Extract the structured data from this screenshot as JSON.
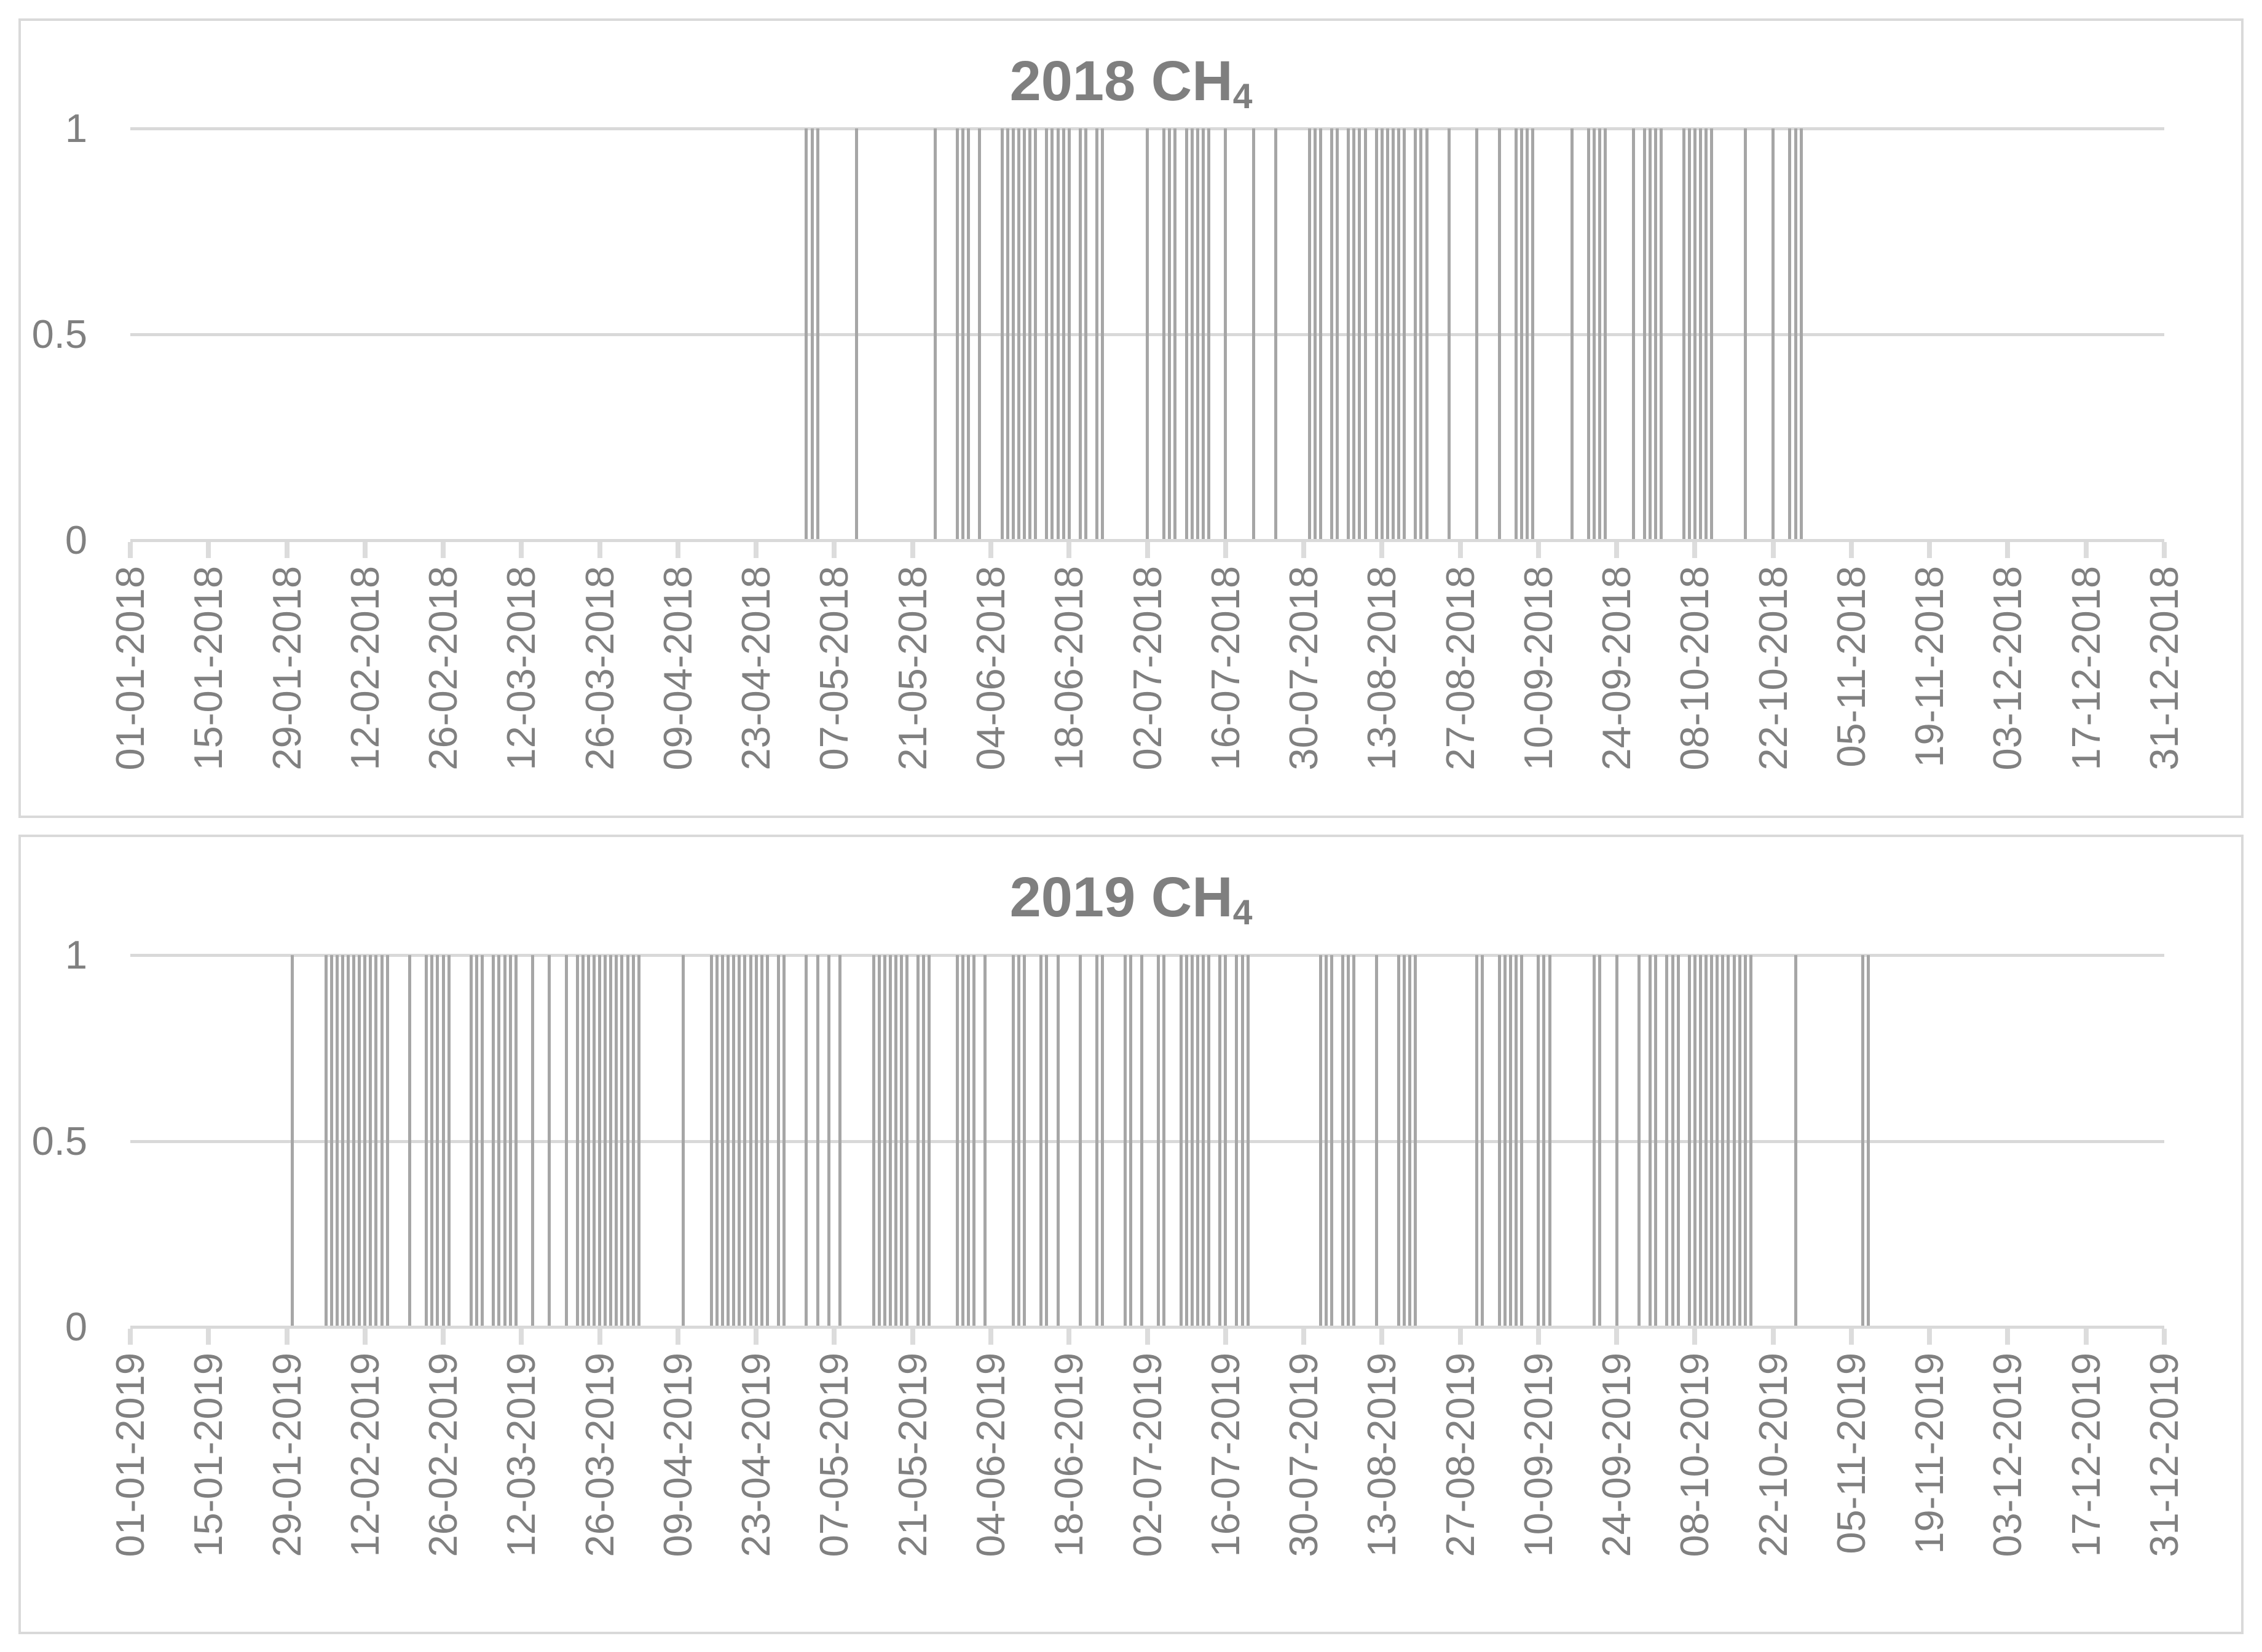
{
  "chart_data": [
    {
      "type": "bar",
      "title": "2018 CH4",
      "title_prefix": "2018 CH",
      "title_subscript": "4",
      "legend": false,
      "y_axis": {
        "ticks": [
          "1",
          "0.5",
          "0"
        ],
        "range": [
          0,
          1
        ],
        "gridlines": true
      },
      "x_axis": {
        "start": "01-01-2018",
        "end": "31-12-2018",
        "tick_interval_days": 14,
        "tick_labels": [
          "01-01-2018",
          "15-01-2018",
          "29-01-2018",
          "12-02-2018",
          "26-02-2018",
          "12-03-2018",
          "26-03-2018",
          "09-04-2018",
          "23-04-2018",
          "07-05-2018",
          "21-05-2018",
          "04-06-2018",
          "18-06-2018",
          "02-07-2018",
          "16-07-2018",
          "30-07-2018",
          "13-08-2018",
          "27-08-2018",
          "10-09-2018",
          "24-09-2018",
          "08-10-2018",
          "22-10-2018",
          "05-11-2018",
          "19-11-2018",
          "03-12-2018",
          "17-12-2018",
          "31-12-2018"
        ]
      },
      "bar_value": 1,
      "on_day_indices": [
        121,
        122,
        123,
        130,
        144,
        148,
        149,
        150,
        152,
        156,
        157,
        158,
        159,
        160,
        161,
        162,
        164,
        165,
        166,
        167,
        168,
        170,
        171,
        173,
        174,
        182,
        185,
        186,
        187,
        189,
        190,
        191,
        192,
        193,
        196,
        201,
        205,
        211,
        212,
        213,
        215,
        216,
        218,
        219,
        220,
        221,
        223,
        224,
        225,
        226,
        227,
        228,
        230,
        231,
        232,
        236,
        241,
        245,
        248,
        249,
        250,
        251,
        258,
        261,
        262,
        263,
        264,
        269,
        271,
        272,
        273,
        274,
        278,
        279,
        280,
        281,
        282,
        283,
        289,
        294,
        297,
        298,
        299
      ]
    },
    {
      "type": "bar",
      "title": "2019 CH4",
      "title_prefix": "2019 CH",
      "title_subscript": "4",
      "legend": false,
      "y_axis": {
        "ticks": [
          "1",
          "0.5",
          "0"
        ],
        "range": [
          0,
          1
        ],
        "gridlines": true
      },
      "x_axis": {
        "start": "01-01-2019",
        "end": "31-12-2019",
        "tick_interval_days": 14,
        "tick_labels": [
          "01-01-2019",
          "15-01-2019",
          "29-01-2019",
          "12-02-2019",
          "26-02-2019",
          "12-03-2019",
          "26-03-2019",
          "09-04-2019",
          "23-04-2019",
          "07-05-2019",
          "21-05-2019",
          "04-06-2019",
          "18-06-2019",
          "02-07-2019",
          "16-07-2019",
          "30-07-2019",
          "13-08-2019",
          "27-08-2019",
          "10-09-2019",
          "24-09-2019",
          "08-10-2019",
          "22-10-2019",
          "05-11-2019",
          "19-11-2019",
          "03-12-2019",
          "17-12-2019",
          "31-12-2019"
        ]
      },
      "bar_value": 1,
      "on_day_indices": [
        29,
        35,
        36,
        37,
        38,
        39,
        40,
        41,
        42,
        43,
        44,
        45,
        46,
        50,
        53,
        54,
        55,
        56,
        57,
        61,
        62,
        63,
        65,
        66,
        67,
        68,
        69,
        72,
        75,
        78,
        80,
        81,
        82,
        83,
        84,
        85,
        86,
        87,
        88,
        89,
        90,
        91,
        99,
        104,
        105,
        106,
        107,
        108,
        109,
        110,
        111,
        112,
        113,
        114,
        116,
        117,
        121,
        123,
        125,
        127,
        133,
        134,
        135,
        136,
        137,
        138,
        139,
        141,
        142,
        143,
        148,
        149,
        150,
        151,
        153,
        158,
        159,
        160,
        163,
        164,
        166,
        170,
        173,
        174,
        178,
        179,
        181,
        184,
        185,
        188,
        189,
        190,
        191,
        192,
        193,
        195,
        196,
        198,
        199,
        200,
        213,
        214,
        215,
        217,
        218,
        219,
        223,
        227,
        228,
        229,
        230,
        241,
        242,
        245,
        246,
        247,
        248,
        249,
        252,
        253,
        254,
        262,
        263,
        266,
        270,
        272,
        273,
        275,
        276,
        277,
        279,
        280,
        281,
        282,
        283,
        284,
        285,
        286,
        287,
        288,
        289,
        290,
        298,
        310,
        311
      ]
    }
  ],
  "styles": {
    "bar_color": "#a6a6a6",
    "gridline_color": "#d9d9d9",
    "axis_color": "#d9d9d9",
    "tick_color": "#dcdcdc",
    "label_color": "#808080",
    "title_color": "#7f7f7f",
    "panel_border_color": "#d9d9d9",
    "background": "#ffffff"
  }
}
